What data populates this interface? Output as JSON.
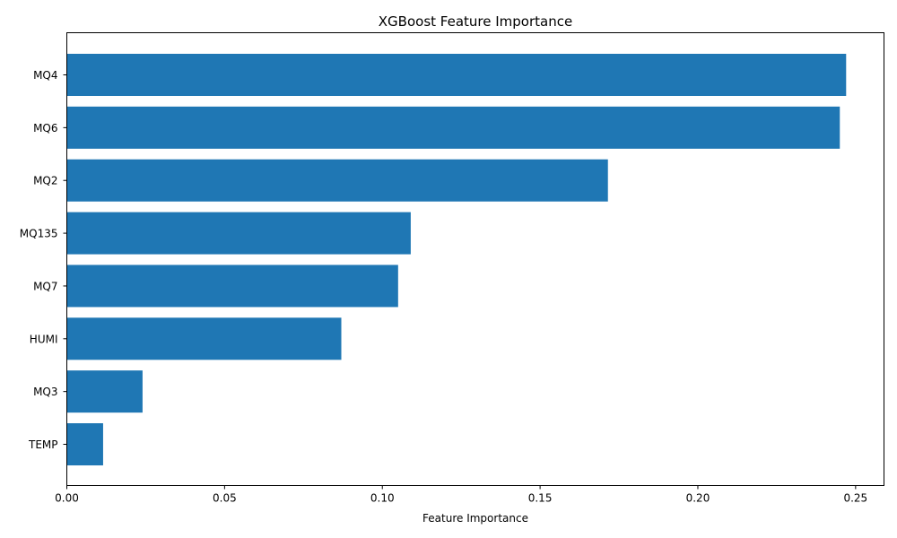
{
  "chart_data": {
    "type": "bar",
    "orientation": "horizontal",
    "title": "XGBoost Feature Importance",
    "xlabel": "Feature Importance",
    "ylabel": "",
    "xlim": [
      0,
      0.259
    ],
    "x_ticks": [
      "0.00",
      "0.05",
      "0.10",
      "0.15",
      "0.20",
      "0.25"
    ],
    "x_tick_values": [
      0,
      0.05,
      0.1,
      0.15,
      0.2,
      0.25
    ],
    "categories": [
      "MQ4",
      "MQ6",
      "MQ2",
      "MQ135",
      "MQ7",
      "HUMI",
      "MQ3",
      "TEMP"
    ],
    "values": [
      0.247,
      0.245,
      0.1715,
      0.109,
      0.105,
      0.087,
      0.024,
      0.0115
    ],
    "bar_color": "#1f77b4",
    "grid": false,
    "legend": "none"
  }
}
